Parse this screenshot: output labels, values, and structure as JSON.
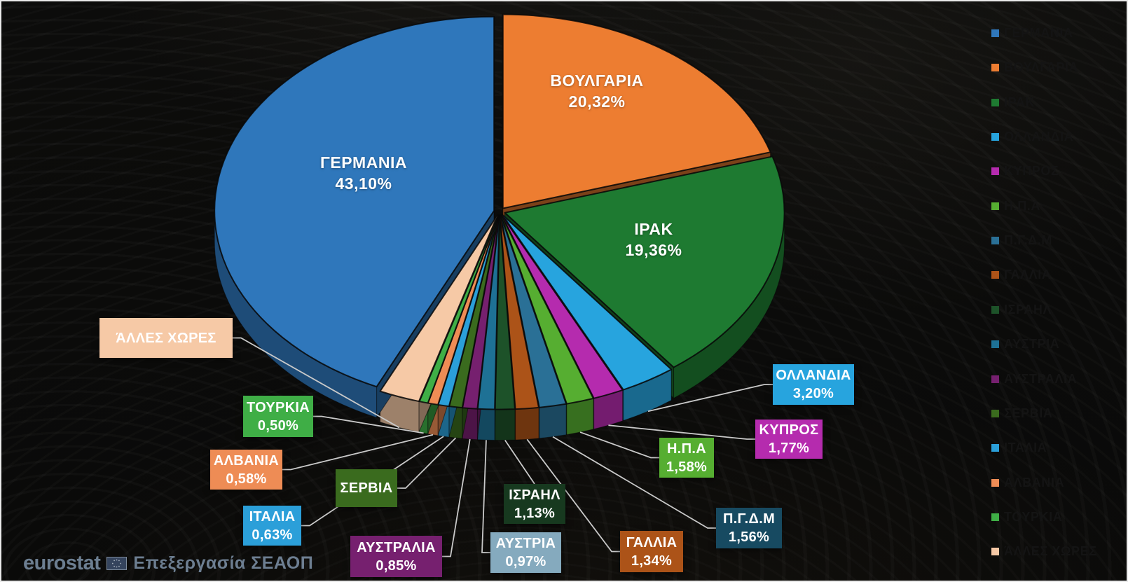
{
  "chart_data": {
    "type": "pie",
    "style": "3d-exploded",
    "title": "",
    "unit": "%",
    "decimal_separator": ",",
    "legend_position": "right",
    "background": "dark-wood-photo",
    "leader_line_color": "#c9c9c9",
    "slices": [
      {
        "label": "ΓΕΡΜΑΝΙΑ",
        "value": 43.1,
        "display": "43,10%",
        "color": "#2f77bb",
        "label_placement": "on-slice",
        "callout": false
      },
      {
        "label": "ΒΟΥΛΓΑΡΙΑ",
        "value": 20.32,
        "display": "20,32%",
        "color": "#ed7d31",
        "label_placement": "on-slice",
        "callout": false
      },
      {
        "label": "ΙΡΑΚ",
        "value": 19.36,
        "display": "19,36%",
        "color": "#1e7a31",
        "label_placement": "on-slice",
        "callout": false
      },
      {
        "label": "ΟΛΛΑΝΔΙΑ",
        "value": 3.2,
        "display": "3,20%",
        "color": "#27a4de",
        "label_placement": "callout",
        "callout": true
      },
      {
        "label": "ΚΥΠΡΟΣ",
        "value": 1.77,
        "display": "1,77%",
        "color": "#b52bae",
        "label_placement": "callout",
        "callout": true
      },
      {
        "label": "Η.Π.Α",
        "value": 1.58,
        "display": "1,58%",
        "color": "#56ae31",
        "label_placement": "callout",
        "callout": true
      },
      {
        "label": "Π.Γ.Δ.Μ",
        "value": 1.56,
        "display": "1,56%",
        "color": "#2a7096",
        "box_color": "#174a61",
        "label_placement": "callout",
        "callout": true
      },
      {
        "label": "ΓΑΛΛΙΑ",
        "value": 1.34,
        "display": "1,34%",
        "color": "#ac5318",
        "label_placement": "callout",
        "callout": true
      },
      {
        "label": "ΙΣΡΑΗΛ",
        "value": 1.13,
        "display": "1,13%",
        "color": "#1d5229",
        "box_color": "#17391f",
        "label_placement": "callout",
        "callout": true
      },
      {
        "label": "ΑΥΣΤΡΙΑ",
        "value": 0.97,
        "display": "0,97%",
        "color": "#1e7195",
        "box_color": "#85aabe",
        "label_placement": "callout",
        "callout": true
      },
      {
        "label": "ΑΥΣΤΡΑΛΙΑ",
        "value": 0.85,
        "display": "0,85%",
        "color": "#76206f",
        "label_placement": "callout",
        "callout": true
      },
      {
        "label": "ΣΕΡΒΙΑ",
        "value": 0.75,
        "estimated": true,
        "display": null,
        "color": "#3a6b1e",
        "label_placement": "callout",
        "callout": true
      },
      {
        "label": "ΙΤΑΛΙΑ",
        "value": 0.63,
        "display": "0,63%",
        "color": "#2b9fd9",
        "label_placement": "callout",
        "callout": true
      },
      {
        "label": "ΑΛΒΑΝΙΑ",
        "value": 0.58,
        "display": "0,58%",
        "color": "#ee8c55",
        "label_placement": "callout",
        "callout": true
      },
      {
        "label": "ΤΟΥΡΚΙΑ",
        "value": 0.5,
        "display": "0,50%",
        "color": "#3fae46",
        "label_placement": "callout",
        "callout": true
      },
      {
        "label": "ΆΛΛΕΣ ΧΩΡΕΣ",
        "value": 2.36,
        "estimated": true,
        "display": null,
        "color": "#f6c9a6",
        "label_placement": "callout",
        "callout": true
      }
    ]
  },
  "footer": {
    "brand": "eurostat",
    "flag_icon": "eu-flag-icon",
    "credit": "Επεξεργασία ΣΕΑΟΠ"
  }
}
